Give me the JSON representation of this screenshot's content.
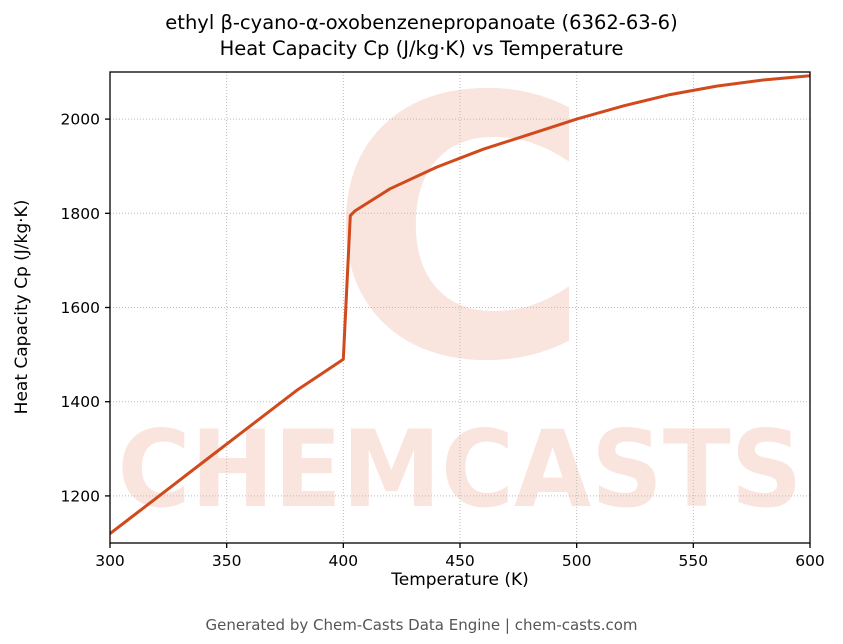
{
  "title_line1": "ethyl β-cyano-α-oxobenzenepropanoate (6362-63-6)",
  "title_line2": "Heat Capacity Cp (J/kg·K) vs Temperature",
  "footer": "Generated by Chem-Casts Data Engine | chem-casts.com",
  "watermark": {
    "logo": "C",
    "text": "CHEMCASTS",
    "color": "#e0502c"
  },
  "chart_data": {
    "type": "line",
    "title": "ethyl β-cyano-α-oxobenzenepropanoate (6362-63-6) Heat Capacity Cp (J/kg·K) vs Temperature",
    "xlabel": "Temperature (K)",
    "ylabel": "Heat Capacity Cp (J/kg·K)",
    "xlim": [
      300,
      600
    ],
    "ylim": [
      1100,
      2100
    ],
    "xticks": [
      300,
      350,
      400,
      450,
      500,
      550,
      600
    ],
    "yticks": [
      1200,
      1400,
      1600,
      1800,
      2000
    ],
    "grid": true,
    "legend": false,
    "line_color": "#d04a1c",
    "series": [
      {
        "name": "Heat Capacity Cp",
        "x": [
          300,
          320,
          340,
          360,
          380,
          397,
          400,
          403,
          405,
          420,
          440,
          460,
          480,
          500,
          520,
          540,
          560,
          580,
          600
        ],
        "y": [
          1120,
          1196,
          1272,
          1348,
          1424,
          1480,
          1490,
          1795,
          1805,
          1852,
          1898,
          1936,
          1968,
          2000,
          2028,
          2052,
          2070,
          2083,
          2092
        ]
      }
    ],
    "annotations": [
      "vertical step (phase transition) near 400 K from ~1490 to ~1800 J/kg·K"
    ]
  }
}
